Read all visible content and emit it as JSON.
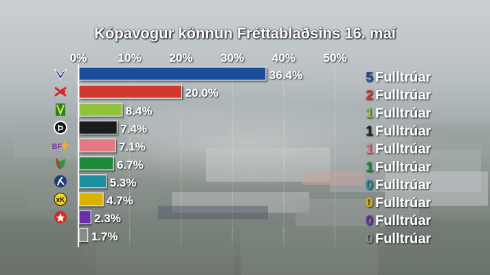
{
  "chart_data": {
    "type": "bar",
    "orientation": "horizontal",
    "title": "Kópavogur könnun Fréttablaðsins 16. maí",
    "x_ticks": [
      "0%",
      "10%",
      "20%",
      "30%",
      "40%",
      "50%"
    ],
    "xlim": [
      0,
      50
    ],
    "grid": true,
    "seat_word": "Fulltrúar",
    "bars": [
      {
        "value": 36.4,
        "label": "36.4%",
        "seats": 5,
        "color": "#1d4e9a",
        "icon": "bird-logo-icon"
      },
      {
        "value": 20.0,
        "label": "20.0%",
        "seats": 2,
        "color": "#d1382f",
        "icon": "rose-logo-icon"
      },
      {
        "value": 8.4,
        "label": "8.4%",
        "seats": 1,
        "color": "#8fc33a",
        "icon": "v-logo-icon"
      },
      {
        "value": 7.4,
        "label": "7.4%",
        "seats": 1,
        "color": "#1a1a1a",
        "icon": "p-logo-icon"
      },
      {
        "value": 7.1,
        "label": "7.1%",
        "seats": 1,
        "color": "#e27a7f",
        "icon": "bf-logo-icon"
      },
      {
        "value": 6.7,
        "label": "6.7%",
        "seats": 1,
        "color": "#1f8a3a",
        "icon": "flower-logo-icon"
      },
      {
        "value": 5.3,
        "label": "5.3%",
        "seats": 0,
        "color": "#1f8f9e",
        "icon": "figure-logo-icon"
      },
      {
        "value": 4.7,
        "label": "4.7%",
        "seats": 0,
        "color": "#d9b200",
        "icon": "xk-logo-icon"
      },
      {
        "value": 2.3,
        "label": "2.3%",
        "seats": 0,
        "color": "#6b2fa6",
        "icon": "star-logo-icon"
      },
      {
        "value": 1.7,
        "label": "1.7%",
        "seats": 0,
        "color": "#8c8c8c",
        "icon": "none"
      }
    ]
  }
}
